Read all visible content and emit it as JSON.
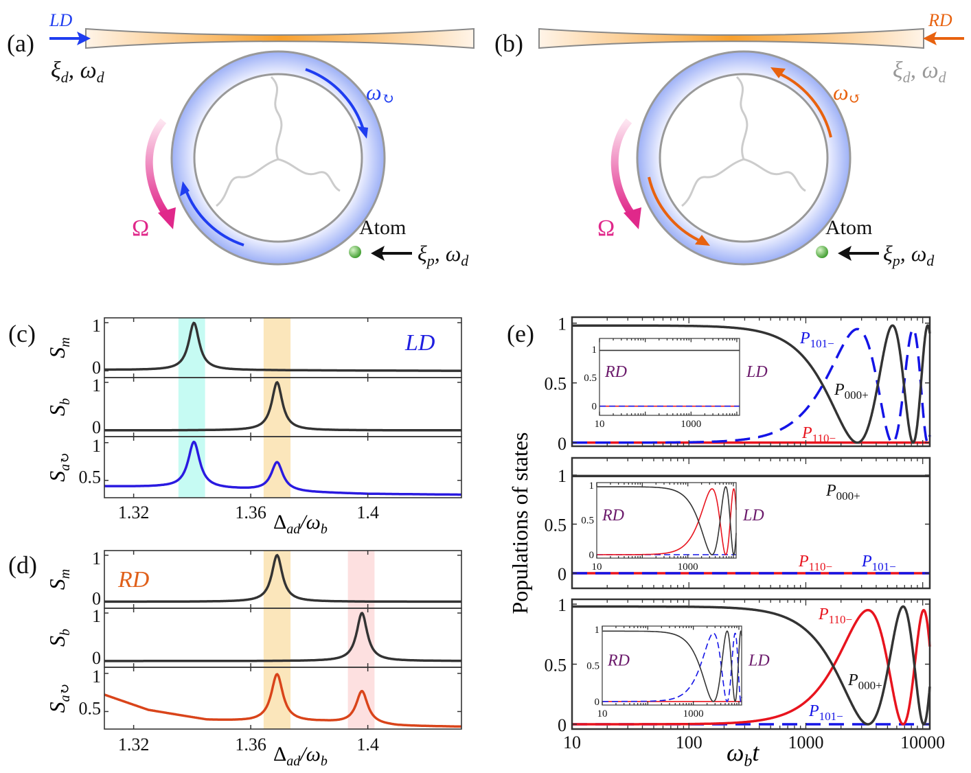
{
  "diagram": {
    "panel_a": "(a)",
    "panel_b": "(b)",
    "drive_left": "LD",
    "drive_right": "RD",
    "xi": "ξ",
    "sub_d": "d",
    "sub_p": "p",
    "comma_omega": ", ω",
    "omega": "ω",
    "rot_symbol": "↻",
    "rot_symbol_ccw": "↺",
    "Omega": "Ω",
    "atom": "Atom",
    "colors": {
      "ld": "#1f3df0",
      "rd": "#e8620f",
      "pump": "#e0288a",
      "ring": "#a8b8f6",
      "atom": "#4caf3a"
    }
  },
  "chart_data": [
    {
      "panel": "(c)",
      "type": "line",
      "annotation": "LD",
      "annotation_color": "#1f1fe0",
      "xlim": [
        1.31,
        1.432
      ],
      "x_ticks": [
        1.32,
        1.36,
        1.4
      ],
      "xlabel": {
        "main": "Δ",
        "sub": "ad",
        "mid": "/ω",
        "sub2": "b"
      },
      "shaded_bands": [
        {
          "range": [
            1.3353,
            1.3444
          ],
          "color": "#c6fbf3"
        },
        {
          "range": [
            1.3644,
            1.3736
          ],
          "color": "#fbe6bb"
        }
      ],
      "subplots": [
        {
          "ylabel": "S",
          "ysub": "m",
          "yticks": [
            0,
            1
          ],
          "ylim": [
            -0.14,
            1.1
          ],
          "series": [
            {
              "color": "#333333",
              "baseline": [
                [
                  1.31,
                  0.02
                ],
                [
                  1.432,
                  0.0
                ]
              ],
              "peaks": [
                {
                  "center": 1.3406,
                  "height": 0.98,
                  "hwhm": 0.0022
                }
              ]
            }
          ]
        },
        {
          "ylabel": "S",
          "ysub": "b",
          "yticks": [
            0,
            1
          ],
          "ylim": [
            -0.13,
            1.1
          ],
          "series": [
            {
              "color": "#333333",
              "baseline": [
                [
                  1.31,
                  0.0
                ],
                [
                  1.432,
                  0.0
                ]
              ],
              "peaks": [
                {
                  "center": 1.369,
                  "height": 1.0,
                  "hwhm": 0.0022
                }
              ]
            }
          ]
        },
        {
          "ylabel": "S",
          "ysub": "a↻",
          "yticks": [
            0.5,
            1
          ],
          "ylim": [
            0.27,
            1.08
          ],
          "series": [
            {
              "color": "#2a1ae0",
              "baseline": [
                [
                  1.31,
                  0.42
                ],
                [
                  1.33,
                  0.41
                ],
                [
                  1.355,
                  0.38
                ],
                [
                  1.38,
                  0.34
                ],
                [
                  1.4,
                  0.32
                ],
                [
                  1.432,
                  0.31
                ]
              ],
              "peaks": [
                {
                  "center": 1.3406,
                  "height": 0.61,
                  "hwhm": 0.0024
                },
                {
                  "center": 1.369,
                  "height": 0.38,
                  "hwhm": 0.0024
                }
              ]
            }
          ]
        }
      ]
    },
    {
      "panel": "(d)",
      "type": "line",
      "annotation": "RD",
      "annotation_color": "#e0601a",
      "xlim": [
        1.31,
        1.432
      ],
      "x_ticks": [
        1.32,
        1.36,
        1.4
      ],
      "xlabel": {
        "main": "Δ",
        "sub": "ad",
        "mid": "/ω",
        "sub2": "b"
      },
      "shaded_bands": [
        {
          "range": [
            1.3644,
            1.3736
          ],
          "color": "#fbe6bb"
        },
        {
          "range": [
            1.3932,
            1.4023
          ],
          "color": "#fde0e0"
        }
      ],
      "subplots": [
        {
          "ylabel": "S",
          "ysub": "m",
          "yticks": [
            0,
            1
          ],
          "ylim": [
            -0.14,
            1.1
          ],
          "series": [
            {
              "color": "#333333",
              "baseline": [
                [
                  1.31,
                  0.0
                ],
                [
                  1.432,
                  0.0
                ]
              ],
              "peaks": [
                {
                  "center": 1.369,
                  "height": 1.0,
                  "hwhm": 0.0022
                }
              ]
            }
          ]
        },
        {
          "ylabel": "S",
          "ysub": "b",
          "yticks": [
            0,
            1
          ],
          "ylim": [
            -0.13,
            1.1
          ],
          "series": [
            {
              "color": "#333333",
              "baseline": [
                [
                  1.31,
                  0.0
                ],
                [
                  1.432,
                  0.0
                ]
              ],
              "peaks": [
                {
                  "center": 1.398,
                  "height": 1.0,
                  "hwhm": 0.0022
                }
              ]
            }
          ]
        },
        {
          "ylabel": "S",
          "ysub": "a↻",
          "yticks": [
            0.5,
            1
          ],
          "ylim": [
            0.27,
            1.08
          ],
          "series": [
            {
              "color": "#d9441a",
              "baseline": [
                [
                  1.31,
                  0.72
                ],
                [
                  1.325,
                  0.52
                ],
                [
                  1.345,
                  0.39
                ],
                [
                  1.36,
                  0.37
                ],
                [
                  1.385,
                  0.36
                ],
                [
                  1.41,
                  0.31
                ],
                [
                  1.432,
                  0.3
                ]
              ],
              "peaks": [
                {
                  "center": 1.369,
                  "height": 0.62,
                  "hwhm": 0.0024
                },
                {
                  "center": 1.398,
                  "height": 0.43,
                  "hwhm": 0.0024
                }
              ]
            }
          ]
        }
      ]
    },
    {
      "panel": "(e)",
      "type": "line",
      "x_scale": "log",
      "xlim": [
        10,
        11500
      ],
      "x_ticks": [
        10,
        100,
        1000,
        10000
      ],
      "xlabel": {
        "main": "ω",
        "sub": "b",
        "rest": "t"
      },
      "ylabel": "Populations of states",
      "subplots": [
        {
          "yticks": [
            0,
            0.5,
            1
          ],
          "ylim": [
            -0.03,
            1.05
          ],
          "series": [
            {
              "name": "P110−",
              "color": "#e8141e",
              "style": "solid",
              "model": "const",
              "value": 0.0
            },
            {
              "name": "P101−",
              "color": "#1414e6",
              "style": "dashed",
              "model": "sin2",
              "T": 2760,
              "amp": 0.95
            },
            {
              "name": "P000+",
              "color": "#333333",
              "style": "solid",
              "model": "cos2",
              "T": 2760,
              "amp": 0.98
            }
          ],
          "labels": [
            {
              "p": "P",
              "sub": "101−",
              "color": "#1414e6"
            },
            {
              "p": "P",
              "sub": "000+",
              "color": "#111111"
            },
            {
              "p": "P",
              "sub": "110−",
              "color": "#e8141e"
            }
          ],
          "inset": {
            "left": "RD",
            "right": "LD",
            "label_color": "#6b1a6b",
            "yticks": [
              0,
              0.5,
              1
            ],
            "x_ticks": [
              10,
              1000
            ],
            "ylim": [
              -0.16,
              1.19
            ],
            "series": [
              {
                "color": "#e8141e",
                "style": "solid",
                "model": "const",
                "value": 0.0
              },
              {
                "color": "#1414e6",
                "style": "dashed",
                "model": "const",
                "value": 0.0
              },
              {
                "color": "#333333",
                "style": "solid",
                "model": "const",
                "value": 0.98
              }
            ]
          }
        },
        {
          "yticks": [
            0,
            0.5,
            1
          ],
          "ylim": [
            -0.154,
            1.175
          ],
          "series": [
            {
              "name": "P110−",
              "color": "#e8141e",
              "style": "solid",
              "model": "const",
              "value": 0.0
            },
            {
              "name": "P101−",
              "color": "#1414e6",
              "style": "dashed",
              "model": "const",
              "value": 0.0
            },
            {
              "name": "P000+",
              "color": "#333333",
              "style": "solid",
              "model": "const",
              "value": 0.99
            }
          ],
          "labels": [
            {
              "p": "P",
              "sub": "000+",
              "color": "#111111"
            },
            {
              "p": "P",
              "sub": "110−",
              "color": "#e8141e"
            },
            {
              "p": "P",
              "sub": "101−",
              "color": "#1414e6"
            }
          ],
          "inset": {
            "left": "RD",
            "right": "LD",
            "label_color": "#6b1a6b",
            "yticks": [
              0,
              0.5,
              1
            ],
            "x_ticks": [
              10,
              1000
            ],
            "ylim": [
              -0.05,
              1.04
            ],
            "series": [
              {
                "color": "#1414e6",
                "style": "dashed",
                "model": "const",
                "value": 0.0
              },
              {
                "color": "#e8141e",
                "style": "solid",
                "model": "sin2",
                "T": 3400,
                "amp": 0.95
              },
              {
                "color": "#333333",
                "style": "solid",
                "model": "cos2",
                "T": 3400,
                "amp": 0.98
              }
            ]
          }
        },
        {
          "yticks": [
            0,
            0.5,
            1
          ],
          "ylim": [
            -0.04,
            1.04
          ],
          "series": [
            {
              "name": "P101−",
              "color": "#1414e6",
              "style": "dashed",
              "model": "const",
              "value": 0.0
            },
            {
              "name": "P110−",
              "color": "#e8141e",
              "style": "solid",
              "model": "sin2",
              "T": 3400,
              "amp": 0.95
            },
            {
              "name": "P000+",
              "color": "#333333",
              "style": "solid",
              "model": "cos2",
              "T": 3400,
              "amp": 0.98
            }
          ],
          "labels": [
            {
              "p": "P",
              "sub": "110−",
              "color": "#e8141e"
            },
            {
              "p": "P",
              "sub": "000+",
              "color": "#111111"
            },
            {
              "p": "P",
              "sub": "101−",
              "color": "#1414e6"
            }
          ],
          "inset": {
            "left": "RD",
            "right": "LD",
            "label_color": "#6b1a6b",
            "yticks": [
              0,
              0.5,
              1
            ],
            "x_ticks": [
              10,
              1000
            ],
            "ylim": [
              -0.05,
              1.05
            ],
            "series": [
              {
                "color": "#e8141e",
                "style": "solid",
                "model": "const",
                "value": 0.0
              },
              {
                "color": "#1414e6",
                "style": "dashed",
                "model": "sin2",
                "T": 2760,
                "amp": 0.95
              },
              {
                "color": "#333333",
                "style": "solid",
                "model": "cos2",
                "T": 2760,
                "amp": 0.98
              }
            ]
          }
        }
      ]
    }
  ]
}
